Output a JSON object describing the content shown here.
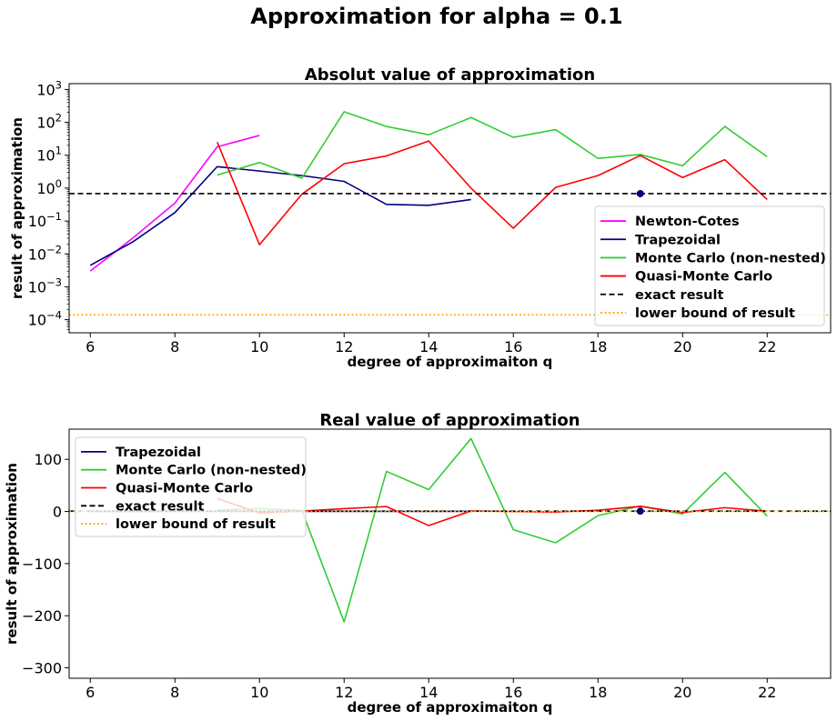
{
  "figure": {
    "suptitle": "Approximation for alpha = 0.1"
  },
  "chart_data": [
    {
      "type": "line",
      "title": "Absolut value of approximation",
      "xlabel": "degree of approximaiton q",
      "ylabel": "result of approximation",
      "yscale": "log",
      "xlim": [
        5.5,
        23.5
      ],
      "ylim": [
        4e-05,
        1500
      ],
      "x_ticks": [
        6,
        8,
        10,
        12,
        14,
        16,
        18,
        20,
        22
      ],
      "y_ticks": [
        {
          "value": 0.0001,
          "base": "10",
          "exp": "−4"
        },
        {
          "value": 0.001,
          "base": "10",
          "exp": "−3"
        },
        {
          "value": 0.01,
          "base": "10",
          "exp": "−2"
        },
        {
          "value": 0.1,
          "base": "10",
          "exp": "−1"
        },
        {
          "value": 1,
          "base": "10",
          "exp": "0"
        },
        {
          "value": 10,
          "base": "10",
          "exp": "1"
        },
        {
          "value": 100,
          "base": "10",
          "exp": "2"
        },
        {
          "value": 1000,
          "base": "10",
          "exp": "3"
        }
      ],
      "legend_position": "lower-right",
      "series": [
        {
          "name": "Newton-Cotes",
          "color": "#ff00ff",
          "style": "solid",
          "x": [
            6,
            7,
            8,
            9,
            10
          ],
          "y": [
            0.003,
            0.03,
            0.35,
            18,
            40
          ]
        },
        {
          "name": "Trapezoidal",
          "color": "#000080",
          "style": "solid",
          "x": [
            6,
            7,
            8,
            9,
            10,
            11,
            12,
            13,
            14,
            15
          ],
          "y": [
            0.0045,
            0.023,
            0.18,
            4.5,
            3.3,
            2.4,
            1.6,
            0.32,
            0.3,
            0.45
          ]
        },
        {
          "name": "Monte Carlo (non-nested)",
          "color": "#32cd32",
          "style": "solid",
          "x": [
            9,
            10,
            11,
            12,
            13,
            14,
            15,
            16,
            17,
            18,
            19,
            20,
            21,
            22
          ],
          "y": [
            2.5,
            6,
            2,
            210,
            75,
            42,
            140,
            35,
            60,
            8,
            10.5,
            4.8,
            75,
            9
          ]
        },
        {
          "name": "Quasi-Monte Carlo",
          "color": "#ff0000",
          "style": "solid",
          "x": [
            9,
            10,
            11,
            12,
            13,
            14,
            15,
            16,
            17,
            18,
            19,
            20,
            21,
            22
          ],
          "y": [
            25,
            0.019,
            0.65,
            5.5,
            9.5,
            27,
            1.0,
            0.06,
            1.05,
            2.4,
            9.8,
            2.1,
            7.3,
            0.45
          ]
        },
        {
          "name": "exact result",
          "color": "#000000",
          "style": "dashed",
          "hline": 0.68
        },
        {
          "name": "lower bound of result",
          "color": "#ffa500",
          "style": "dotted",
          "hline": 0.00014
        }
      ],
      "markers": [
        {
          "x": 19,
          "y": 0.68,
          "color": "#000080"
        }
      ]
    },
    {
      "type": "line",
      "title": "Real value of approximation",
      "xlabel": "degree of approximaiton q",
      "ylabel": "result of approximation",
      "yscale": "linear",
      "xlim": [
        5.5,
        23.5
      ],
      "ylim": [
        -320,
        158
      ],
      "x_ticks": [
        6,
        8,
        10,
        12,
        14,
        16,
        18,
        20,
        22
      ],
      "y_ticks": [
        {
          "value": -300,
          "label": "−300"
        },
        {
          "value": -200,
          "label": "−200"
        },
        {
          "value": -100,
          "label": "−100"
        },
        {
          "value": 0,
          "label": "0"
        },
        {
          "value": 100,
          "label": "100"
        }
      ],
      "legend_position": "upper-left",
      "series": [
        {
          "name": "Trapezoidal",
          "color": "#000080",
          "style": "solid",
          "x": [
            6,
            7,
            8,
            9,
            10,
            11,
            12,
            13,
            14,
            15
          ],
          "y": [
            0.0,
            0.0,
            0.2,
            0.3,
            0.2,
            0.3,
            0.2,
            0.1,
            0.1,
            0.2
          ]
        },
        {
          "name": "Monte Carlo (non-nested)",
          "color": "#32cd32",
          "style": "solid",
          "x": [
            9,
            10,
            11,
            12,
            13,
            14,
            15,
            16,
            17,
            18,
            19,
            20,
            21,
            22
          ],
          "y": [
            2.5,
            6,
            2,
            -212,
            77,
            42,
            140,
            -35,
            -60,
            -8,
            10.5,
            -4.8,
            75,
            -9
          ]
        },
        {
          "name": "Quasi-Monte Carlo",
          "color": "#ff0000",
          "style": "solid",
          "x": [
            9,
            10,
            11,
            12,
            13,
            14,
            15,
            16,
            17,
            18,
            19,
            20,
            21,
            22
          ],
          "y": [
            25,
            -3,
            0.6,
            5.5,
            9.5,
            -27,
            1.0,
            -0.1,
            -1.1,
            2.4,
            9.8,
            -2.1,
            7.3,
            0.4
          ]
        },
        {
          "name": "exact result",
          "color": "#000000",
          "style": "dashed",
          "hline": 0.68
        },
        {
          "name": "lower bound of result",
          "color": "#ffa500",
          "style": "dotted",
          "hline": 0.00014
        }
      ],
      "markers": [
        {
          "x": 19,
          "y": 0.68,
          "color": "#000080"
        }
      ]
    }
  ]
}
